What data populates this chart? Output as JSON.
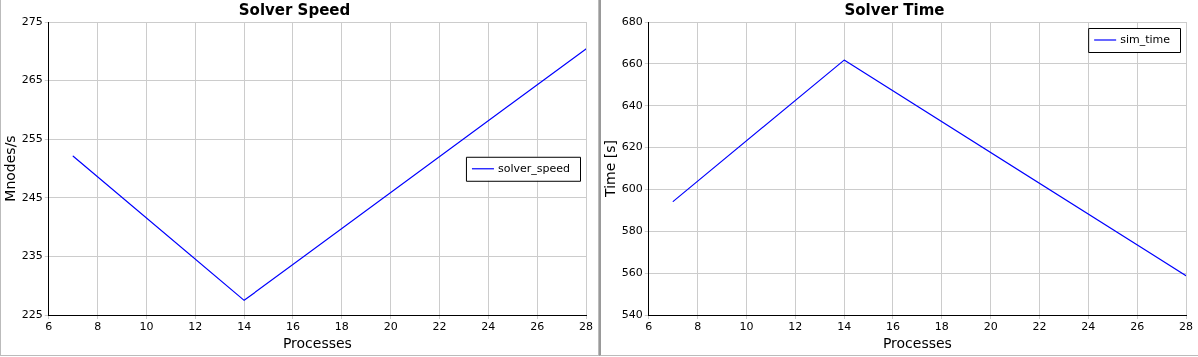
{
  "chart_data": [
    {
      "type": "line",
      "title": "Solver Speed",
      "xlabel": "Processes",
      "ylabel": "Mnodes/s",
      "x": [
        7,
        14,
        28
      ],
      "series": [
        {
          "name": "solver_speed",
          "color": "#0000ff",
          "values": [
            252.1,
            227.5,
            270.4
          ]
        }
      ],
      "xlim": [
        6,
        28
      ],
      "xticks": [
        6,
        8,
        10,
        12,
        14,
        16,
        18,
        20,
        22,
        24,
        26,
        28
      ],
      "ylim": [
        225,
        275
      ],
      "yticks": [
        225,
        235,
        245,
        255,
        265,
        275
      ],
      "grid": true,
      "legend": "right",
      "marker": "none",
      "line_style": "solid"
    },
    {
      "type": "line",
      "title": "Solver Time",
      "xlabel": "Processes",
      "ylabel": "Time [s]",
      "x": [
        7,
        14,
        28
      ],
      "series": [
        {
          "name": "sim_time",
          "color": "#0000ff",
          "values": [
            594.3,
            661.8,
            558.8
          ]
        }
      ],
      "xlim": [
        6,
        28
      ],
      "xticks": [
        6,
        8,
        10,
        12,
        14,
        16,
        18,
        20,
        22,
        24,
        26,
        28
      ],
      "ylim": [
        540,
        680
      ],
      "yticks": [
        540,
        560,
        580,
        600,
        620,
        640,
        660,
        680
      ],
      "grid": true,
      "legend": "top right",
      "marker": "none",
      "line_style": "solid"
    }
  ]
}
